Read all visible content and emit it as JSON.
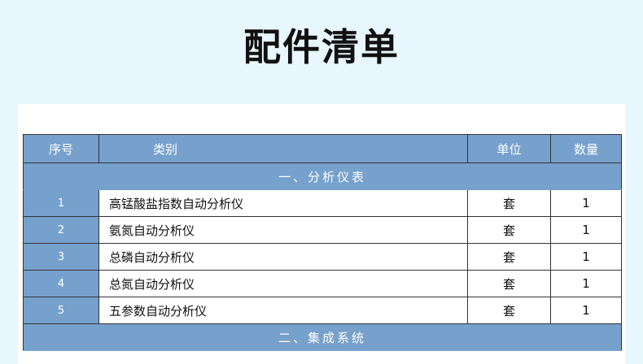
{
  "title": "配件清单",
  "headers": {
    "index": "序号",
    "category": "类别",
    "unit": "单位",
    "quantity": "数量"
  },
  "sections": [
    {
      "label": "一、分析仪表"
    },
    {
      "label": "二、集成系统"
    }
  ],
  "rows": [
    {
      "index": "1",
      "name": "高锰酸盐指数自动分析仪",
      "unit": "套",
      "quantity": "1"
    },
    {
      "index": "2",
      "name": "氨氮自动分析仪",
      "unit": "套",
      "quantity": "1"
    },
    {
      "index": "3",
      "name": "总磷自动分析仪",
      "unit": "套",
      "quantity": "1"
    },
    {
      "index": "4",
      "name": "总氮自动分析仪",
      "unit": "套",
      "quantity": "1"
    },
    {
      "index": "5",
      "name": "五参数自动分析仪",
      "unit": "套",
      "quantity": "1"
    }
  ],
  "colors": {
    "header_bg": "#77a1cd",
    "page_bg": "#e8f6fd"
  }
}
